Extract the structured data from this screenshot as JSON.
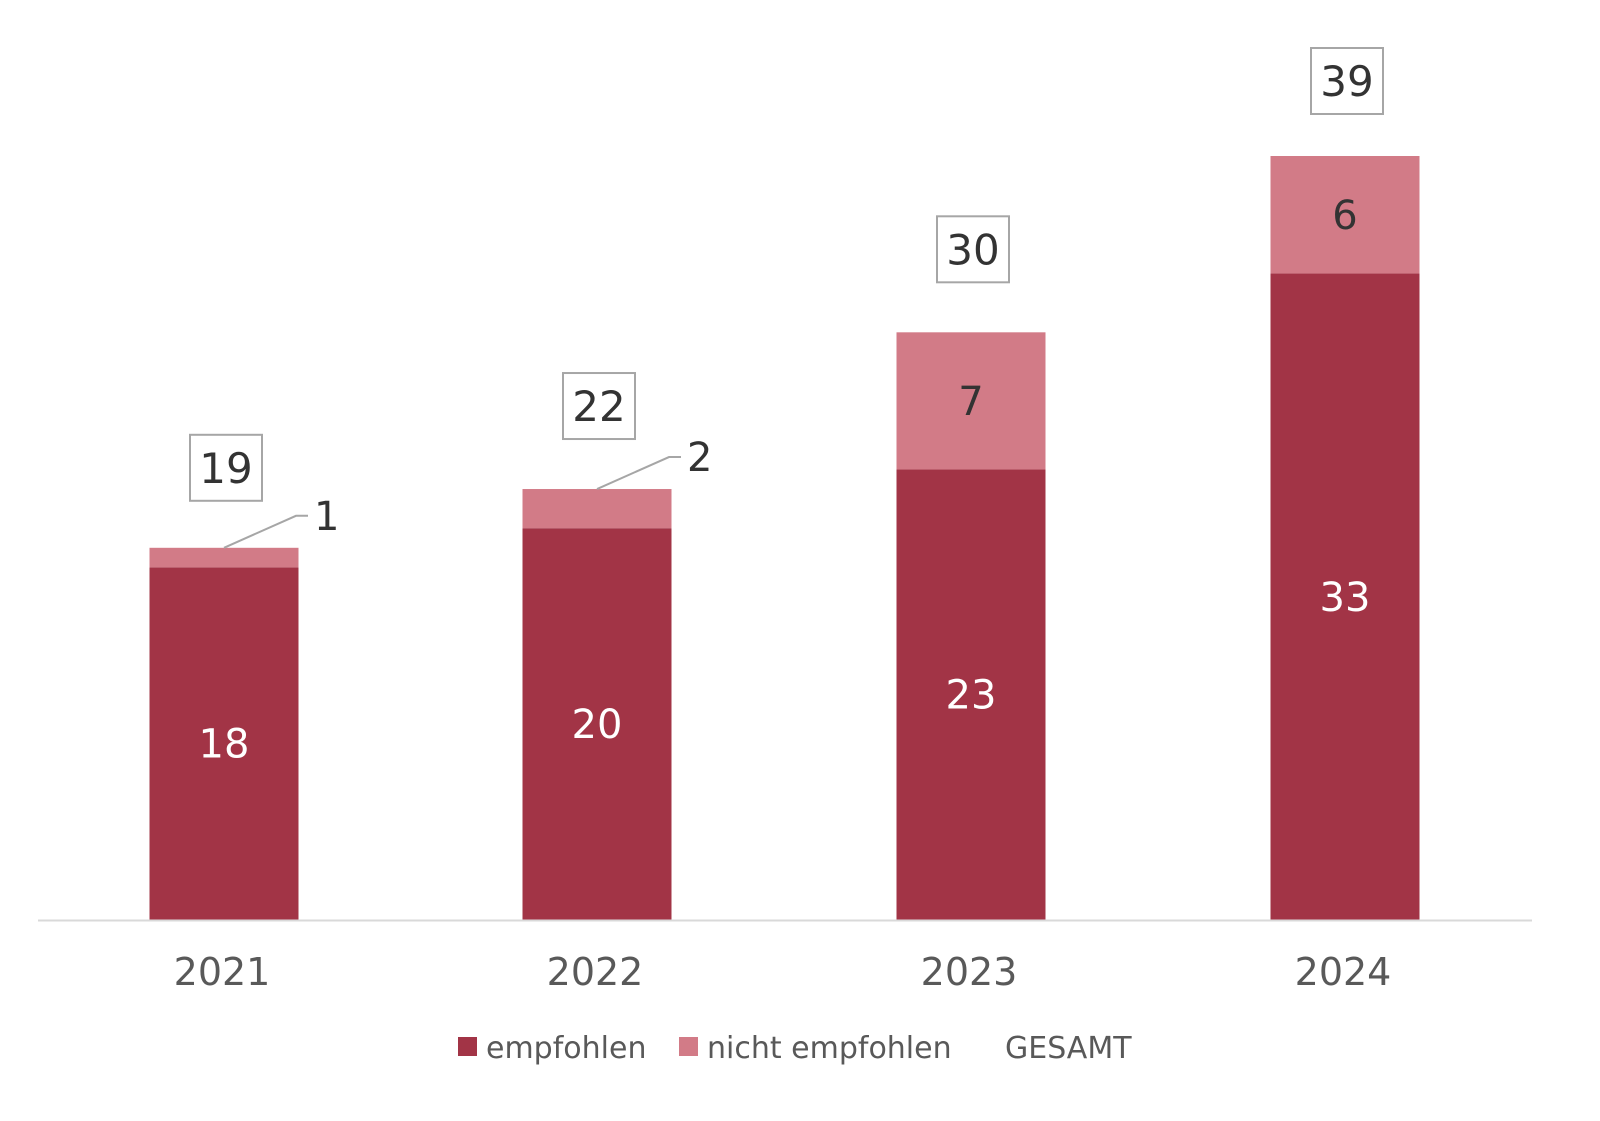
{
  "chart_data": {
    "type": "bar",
    "stacked": true,
    "categories": [
      "2021",
      "2022",
      "2023",
      "2024"
    ],
    "series": [
      {
        "name": "empfohlen",
        "values": [
          18,
          20,
          23,
          33
        ],
        "color": "#a23446",
        "label_color": "#ffffff"
      },
      {
        "name": "nicht empfohlen",
        "values": [
          1,
          2,
          7,
          6
        ],
        "color": "#d27b87",
        "label_color": "#333333"
      }
    ],
    "totals": {
      "name": "GESAMT",
      "values": [
        19,
        22,
        30,
        39
      ]
    },
    "ylim": [
      0,
      39
    ],
    "grid": false,
    "legend": "bottom-center",
    "colors": {
      "axis": "#d9d9d9",
      "box_border": "#a6a6a6",
      "leader": "#a6a6a6"
    }
  }
}
